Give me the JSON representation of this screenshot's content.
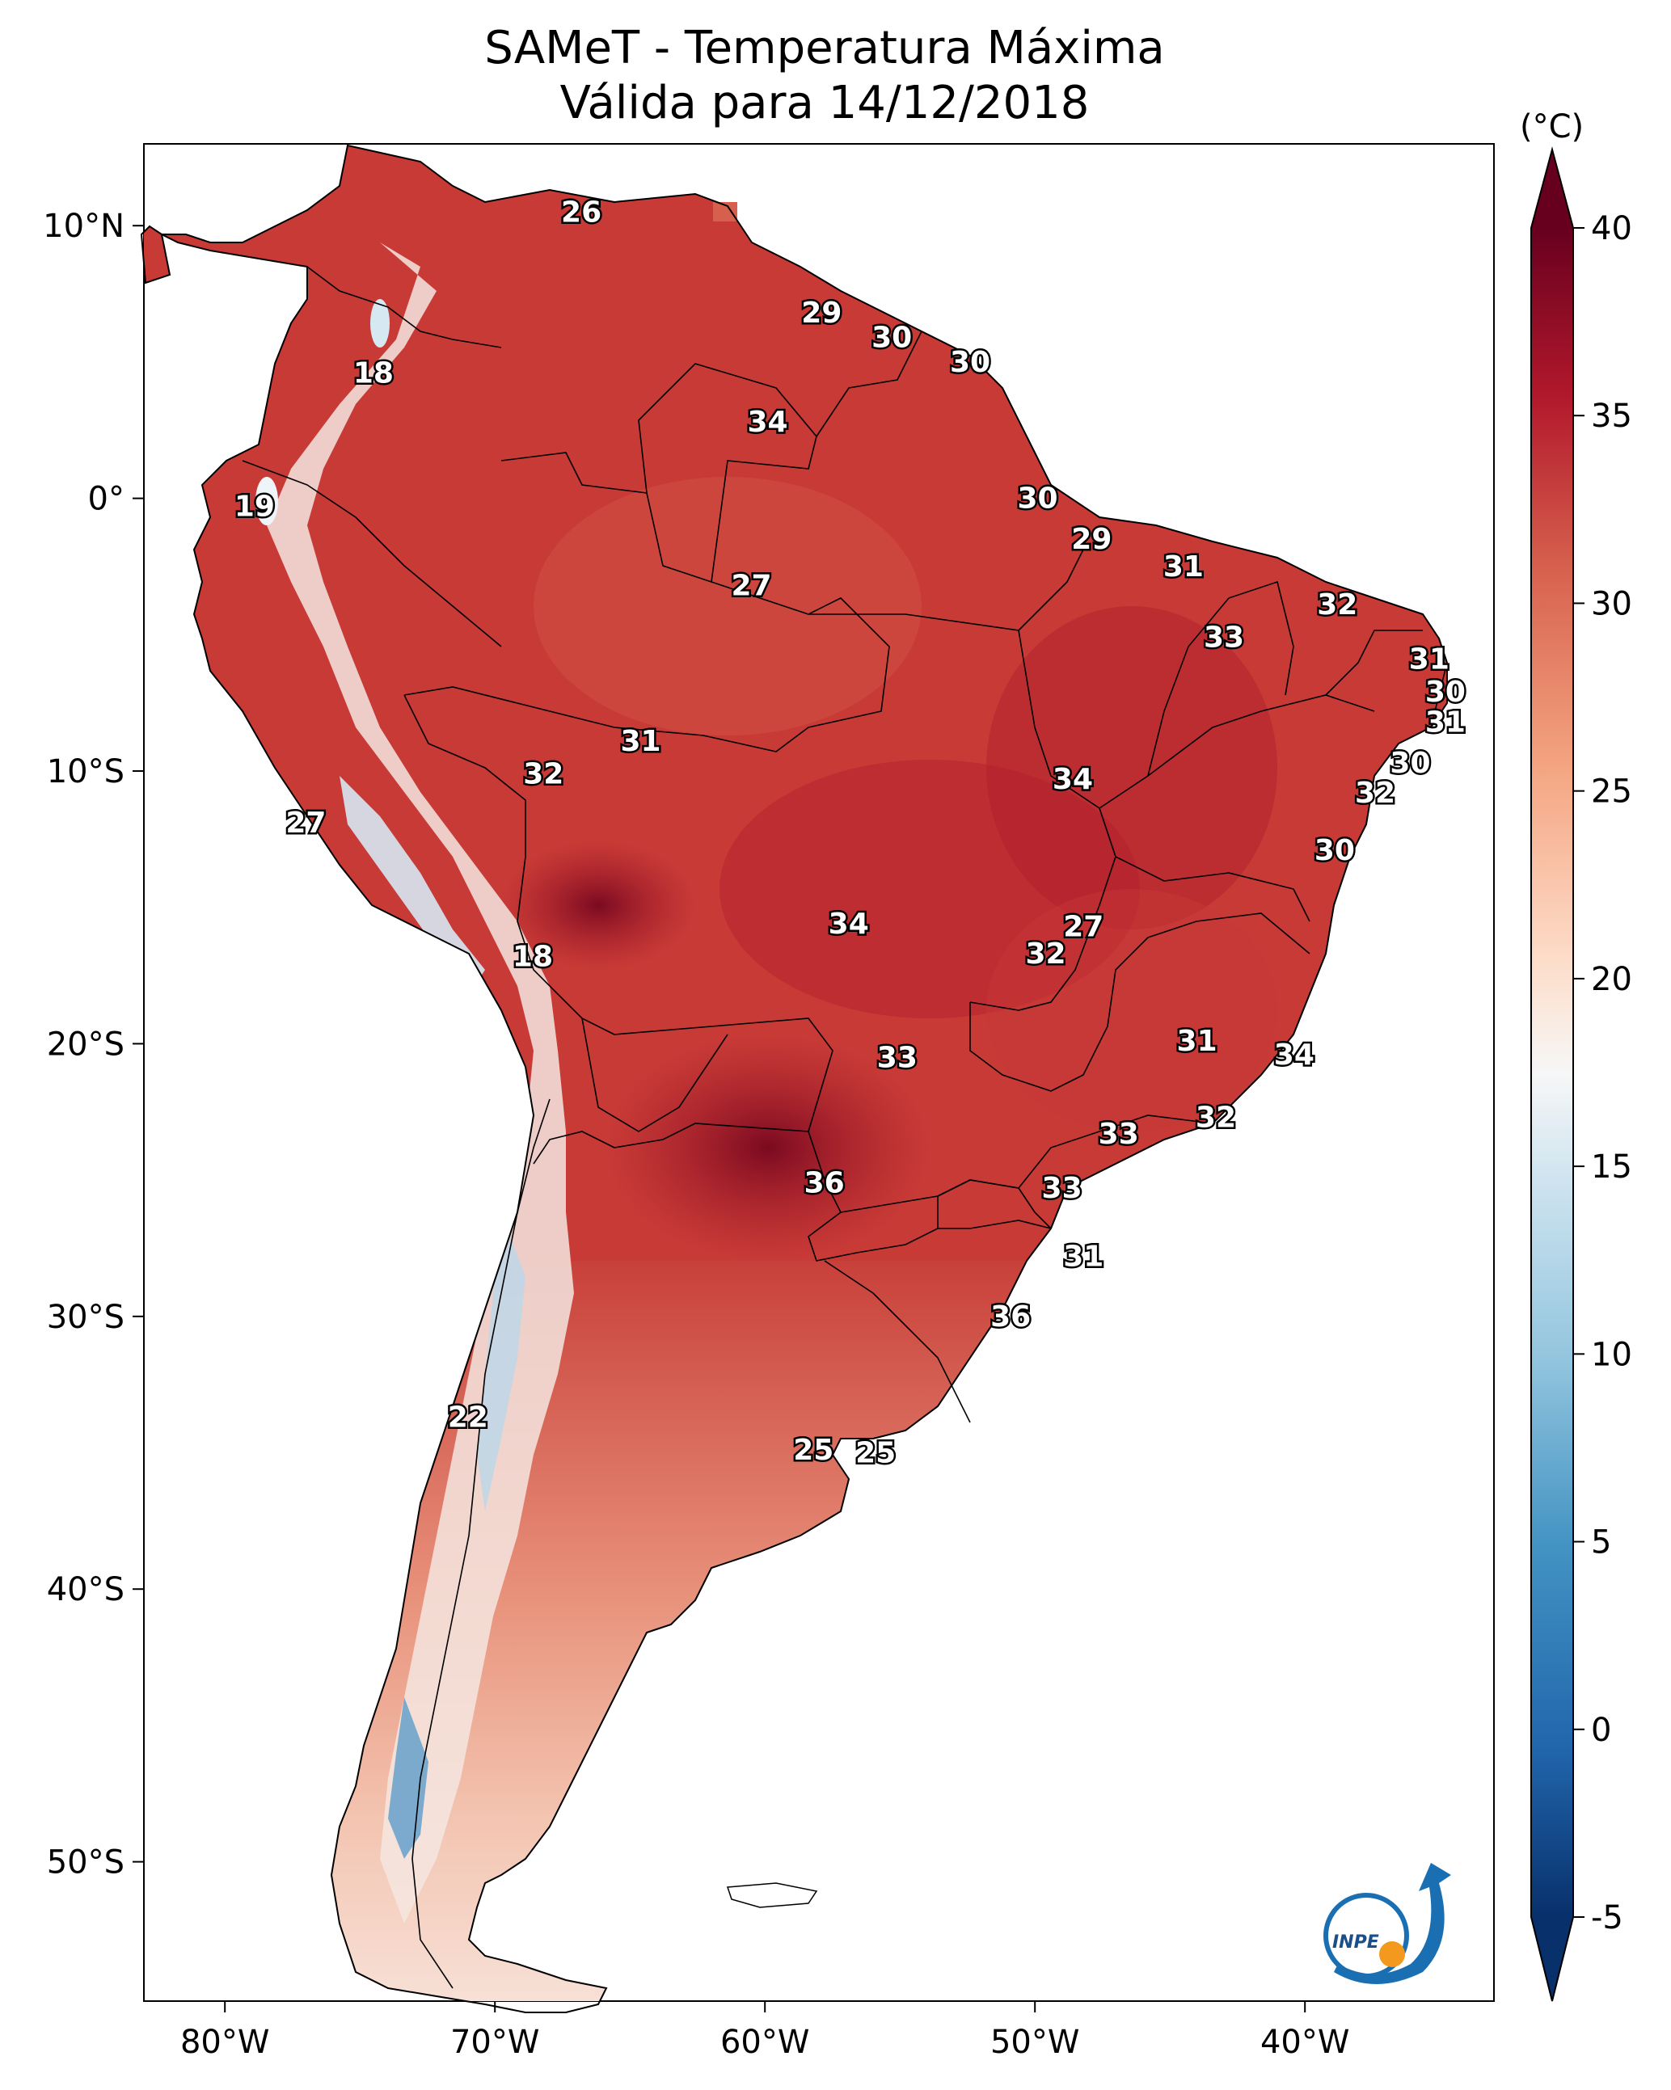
{
  "title": {
    "line1": "SAMeT - Temperatura Máxima",
    "line2": "Válida para 14/12/2018"
  },
  "map": {
    "lon_labels": [
      "80°W",
      "70°W",
      "60°W",
      "50°W",
      "40°W"
    ],
    "lat_labels": [
      "10°N",
      "0°",
      "10°S",
      "20°S",
      "30°S",
      "40°S",
      "50°S"
    ],
    "temperature_labels": [
      {
        "value": "26",
        "lon": -66.8,
        "lat": 10.5
      },
      {
        "value": "29",
        "lon": -57.9,
        "lat": 6.8
      },
      {
        "value": "30",
        "lon": -55.3,
        "lat": 5.9
      },
      {
        "value": "30",
        "lon": -52.4,
        "lat": 5.0
      },
      {
        "value": "18",
        "lon": -74.5,
        "lat": 4.6
      },
      {
        "value": "34",
        "lon": -59.9,
        "lat": 2.8
      },
      {
        "value": "19",
        "lon": -78.9,
        "lat": -0.3
      },
      {
        "value": "30",
        "lon": -49.9,
        "lat": 0.0
      },
      {
        "value": "29",
        "lon": -47.9,
        "lat": -1.5
      },
      {
        "value": "27",
        "lon": -60.5,
        "lat": -3.2
      },
      {
        "value": "31",
        "lon": -44.5,
        "lat": -2.5
      },
      {
        "value": "32",
        "lon": -38.8,
        "lat": -3.9
      },
      {
        "value": "33",
        "lon": -43.0,
        "lat": -5.1
      },
      {
        "value": "31",
        "lon": -35.4,
        "lat": -5.9
      },
      {
        "value": "30",
        "lon": -34.8,
        "lat": -7.1
      },
      {
        "value": "31",
        "lon": -34.8,
        "lat": -8.2
      },
      {
        "value": "31",
        "lon": -64.6,
        "lat": -8.9
      },
      {
        "value": "32",
        "lon": -68.2,
        "lat": -10.1
      },
      {
        "value": "34",
        "lon": -48.6,
        "lat": -10.3
      },
      {
        "value": "30",
        "lon": -36.1,
        "lat": -9.7
      },
      {
        "value": "32",
        "lon": -37.4,
        "lat": -10.8
      },
      {
        "value": "27",
        "lon": -77.0,
        "lat": -11.9
      },
      {
        "value": "30",
        "lon": -38.9,
        "lat": -12.9
      },
      {
        "value": "34",
        "lon": -56.9,
        "lat": -15.6
      },
      {
        "value": "27",
        "lon": -48.2,
        "lat": -15.7
      },
      {
        "value": "32",
        "lon": -49.6,
        "lat": -16.7
      },
      {
        "value": "18",
        "lon": -68.6,
        "lat": -16.8
      },
      {
        "value": "31",
        "lon": -44.0,
        "lat": -19.9
      },
      {
        "value": "34",
        "lon": -40.4,
        "lat": -20.4
      },
      {
        "value": "33",
        "lon": -55.1,
        "lat": -20.5
      },
      {
        "value": "32",
        "lon": -43.3,
        "lat": -22.7
      },
      {
        "value": "33",
        "lon": -46.9,
        "lat": -23.3
      },
      {
        "value": "36",
        "lon": -57.8,
        "lat": -25.1
      },
      {
        "value": "33",
        "lon": -49.0,
        "lat": -25.3
      },
      {
        "value": "31",
        "lon": -48.2,
        "lat": -27.8
      },
      {
        "value": "36",
        "lon": -50.9,
        "lat": -30.0
      },
      {
        "value": "22",
        "lon": -71.0,
        "lat": -33.7
      },
      {
        "value": "25",
        "lon": -58.2,
        "lat": -34.9
      },
      {
        "value": "25",
        "lon": -55.9,
        "lat": -35.0
      }
    ]
  },
  "colorbar": {
    "unit_label": "(°C)",
    "tick_labels": [
      "40",
      "35",
      "30",
      "25",
      "20",
      "15",
      "10",
      "5",
      "0",
      "-5"
    ],
    "min": -5,
    "max": 40,
    "colors": [
      "#08306b",
      "#2166ac",
      "#4393c3",
      "#92c5de",
      "#d1e5f0",
      "#f7f7f7",
      "#fddbc7",
      "#f4a582",
      "#d6604d",
      "#b2182b",
      "#67001f"
    ]
  },
  "logo": {
    "text": "INPE"
  }
}
